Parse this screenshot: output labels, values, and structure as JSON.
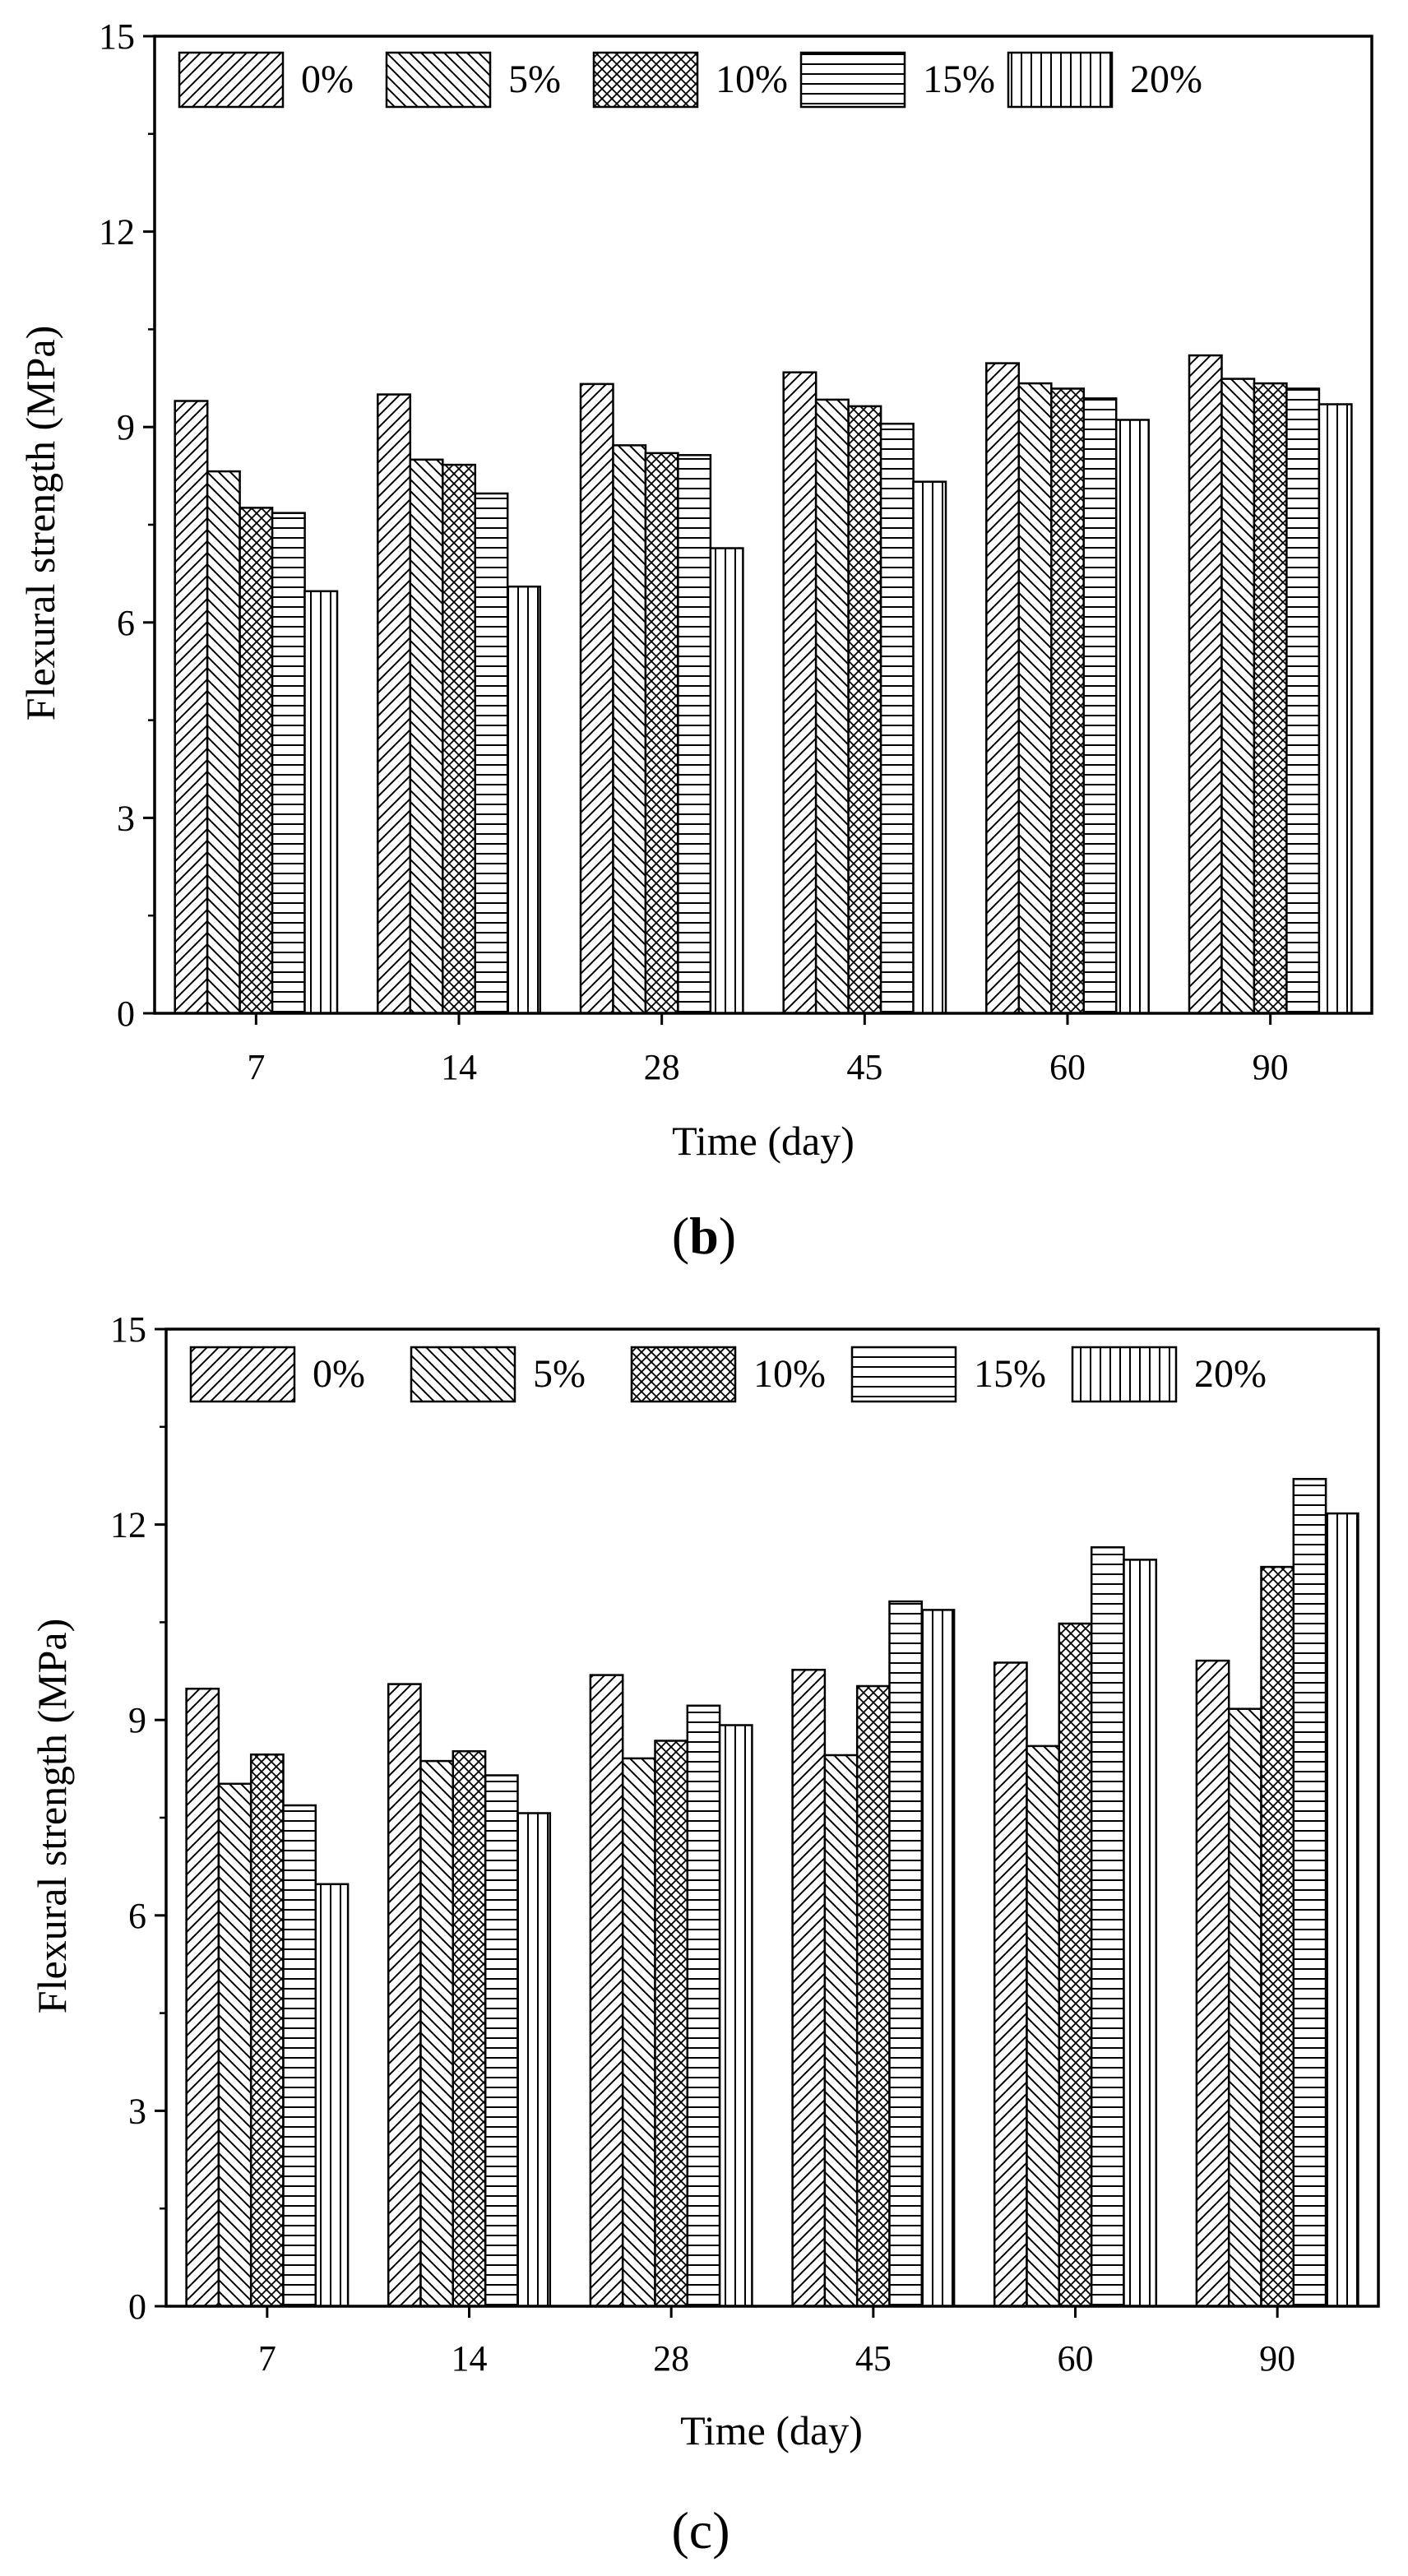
{
  "chart_data": [
    {
      "type": "bar",
      "panel_label": "b",
      "xlabel": "Time (day)",
      "ylabel": "Flexural strength (MPa)",
      "ylim": [
        0,
        15
      ],
      "yticks": [
        "0",
        "3",
        "6",
        "9",
        "12",
        "15"
      ],
      "categories": [
        "7",
        "14",
        "28",
        "45",
        "60",
        "90"
      ],
      "legend_position": "top",
      "series": [
        {
          "name": "0%",
          "pattern": "diag-right",
          "values": [
            9.4,
            9.5,
            9.66,
            9.84,
            9.98,
            10.1
          ]
        },
        {
          "name": "5%",
          "pattern": "diag-left",
          "values": [
            8.32,
            8.5,
            8.72,
            9.42,
            9.67,
            9.74
          ]
        },
        {
          "name": "10%",
          "pattern": "crosshatch",
          "values": [
            7.76,
            8.42,
            8.6,
            9.32,
            9.59,
            9.67
          ]
        },
        {
          "name": "15%",
          "pattern": "horizontal",
          "values": [
            7.68,
            7.98,
            8.57,
            9.05,
            9.44,
            9.59
          ]
        },
        {
          "name": "20%",
          "pattern": "vertical",
          "values": [
            6.48,
            6.55,
            7.14,
            8.16,
            9.11,
            9.35
          ]
        }
      ]
    },
    {
      "type": "bar",
      "panel_label": "c",
      "xlabel": "Time (day)",
      "ylabel": "Flexural strength (MPa)",
      "ylim": [
        0,
        15
      ],
      "yticks": [
        "0",
        "3",
        "6",
        "9",
        "12",
        "15"
      ],
      "categories": [
        "7",
        "14",
        "28",
        "45",
        "60",
        "90"
      ],
      "legend_position": "top",
      "series": [
        {
          "name": "0%",
          "pattern": "diag-right",
          "values": [
            9.48,
            9.55,
            9.69,
            9.77,
            9.88,
            9.91
          ]
        },
        {
          "name": "5%",
          "pattern": "diag-left",
          "values": [
            8.02,
            8.37,
            8.41,
            8.46,
            8.6,
            9.17
          ]
        },
        {
          "name": "10%",
          "pattern": "crosshatch",
          "values": [
            8.47,
            8.52,
            8.68,
            9.52,
            10.48,
            11.35
          ]
        },
        {
          "name": "15%",
          "pattern": "horizontal",
          "values": [
            7.69,
            8.15,
            9.22,
            10.82,
            11.65,
            12.7
          ]
        },
        {
          "name": "20%",
          "pattern": "vertical",
          "values": [
            6.48,
            7.57,
            8.92,
            10.69,
            11.46,
            12.17
          ]
        }
      ]
    }
  ]
}
